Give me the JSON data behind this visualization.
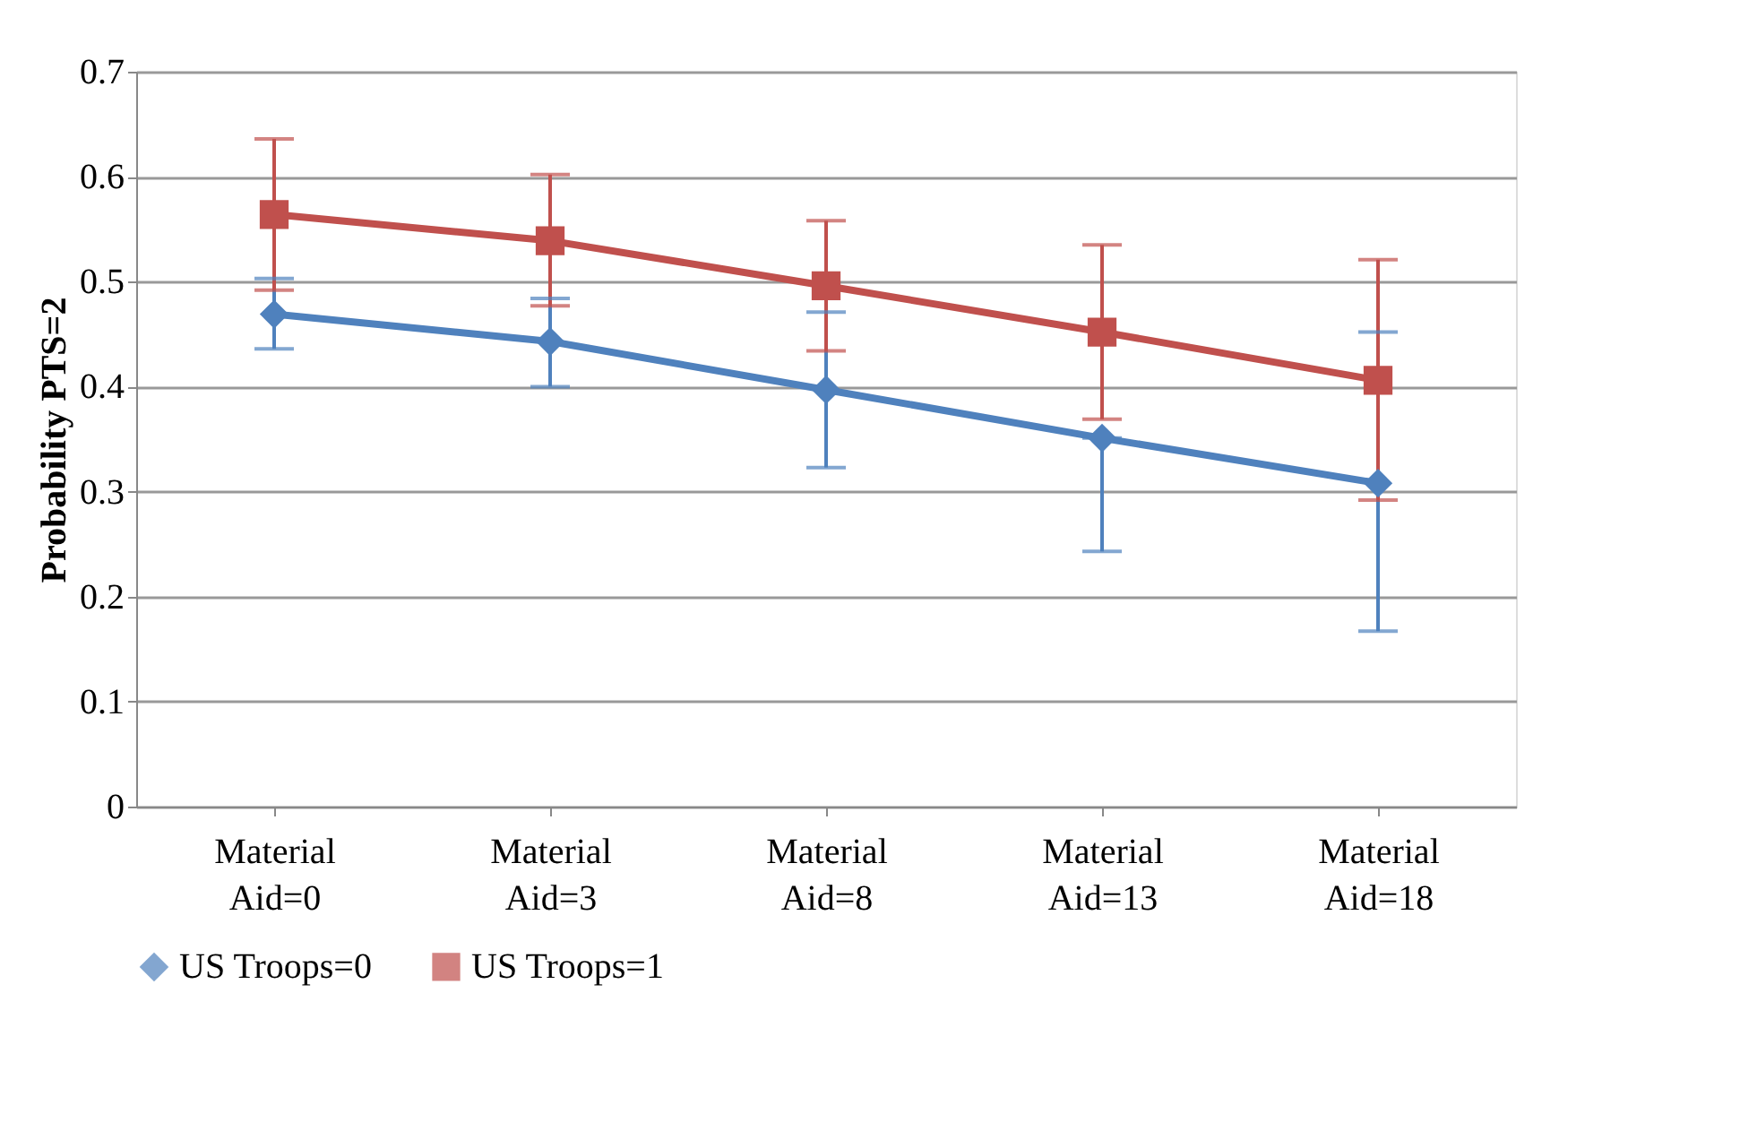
{
  "chart_data": {
    "type": "line",
    "ylabel": "Probability PTS=2",
    "categories": [
      "Material Aid=0",
      "Material Aid=3",
      "Material Aid=8",
      "Material Aid=13",
      "Material Aid=18"
    ],
    "series": [
      {
        "name": "US Troops=0",
        "color": "#4f81bd",
        "marker": "diamond",
        "values": [
          0.469,
          0.443,
          0.397,
          0.351,
          0.308
        ],
        "errors": [
          [
            0.436,
            0.503
          ],
          [
            0.4,
            0.484
          ],
          [
            0.323,
            0.471
          ],
          [
            0.243,
            0.351
          ],
          [
            0.167,
            0.452
          ]
        ]
      },
      {
        "name": "US Troops=1",
        "color": "#c0504d",
        "marker": "square",
        "values": [
          0.564,
          0.539,
          0.496,
          0.452,
          0.406
        ],
        "errors": [
          [
            0.492,
            0.636
          ],
          [
            0.477,
            0.602
          ],
          [
            0.434,
            0.558
          ],
          [
            0.369,
            0.535
          ],
          [
            0.292,
            0.521
          ]
        ]
      }
    ],
    "ylim": [
      0,
      0.7
    ],
    "yticks": [
      0,
      0.1,
      0.2,
      0.3,
      0.4,
      0.5,
      0.6,
      0.7
    ],
    "grid": "y",
    "legend": "bottom",
    "line_style": "solid"
  }
}
